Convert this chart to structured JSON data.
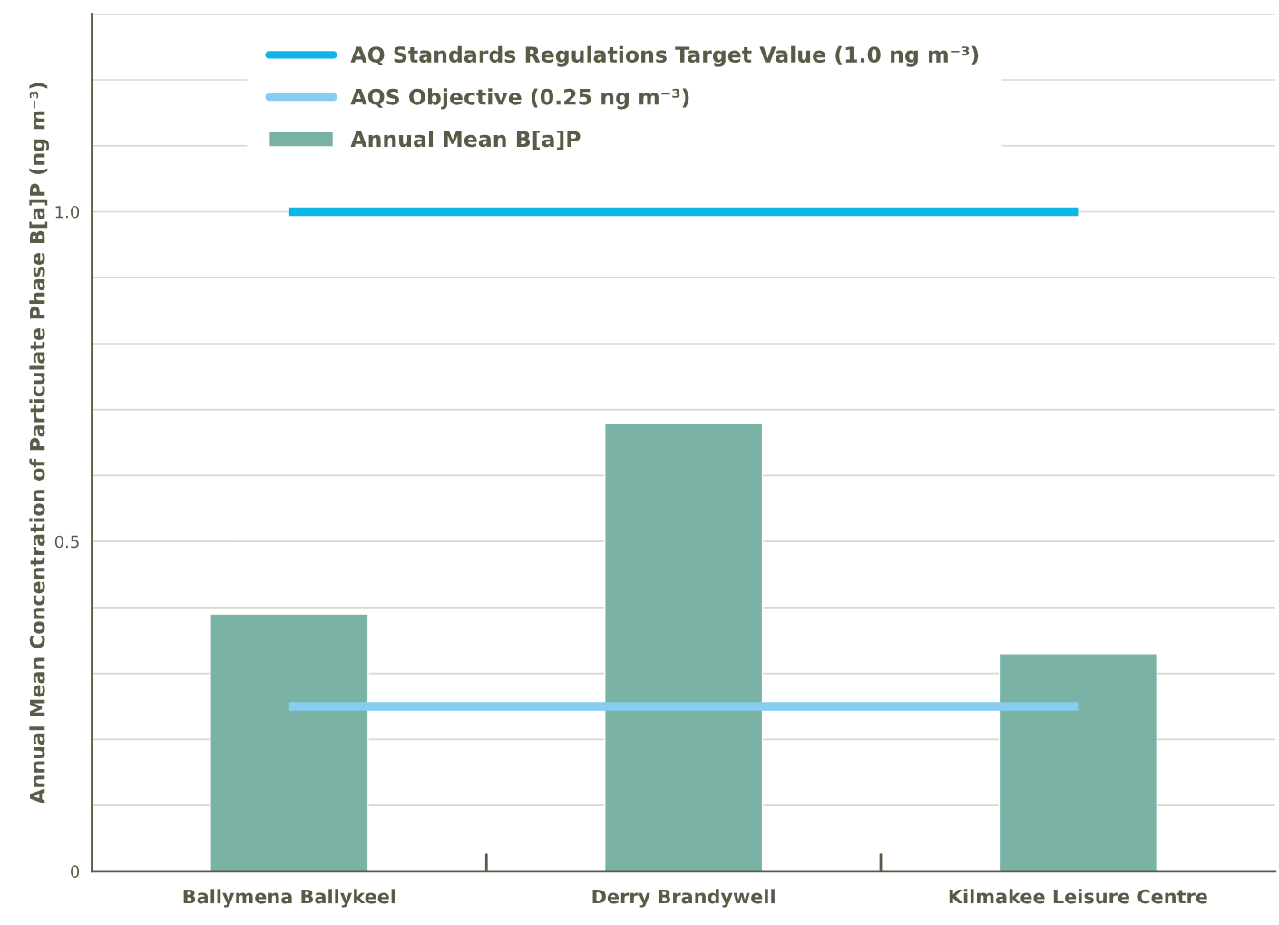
{
  "chart_data": {
    "type": "bar",
    "ylabel": "Annual Mean Concentration of Particulate Phase B[a]P (ng m⁻³)",
    "categories": [
      "Ballymena Ballykeel",
      "Derry Brandywell",
      "Kilmakee Leisure Centre"
    ],
    "series": [
      {
        "name": "AQ Standards Regulations Target Value (1.0 ng m⁻³)",
        "type": "line",
        "color": "#0bb5e6",
        "values": [
          1.0,
          1.0,
          1.0
        ]
      },
      {
        "name": "AQS Objective (0.25 ng m⁻³)",
        "type": "line",
        "color": "#86cdf0",
        "values": [
          0.25,
          0.25,
          0.25
        ]
      },
      {
        "name": "Annual Mean B[a]P",
        "color": "#7ab3a5",
        "values": [
          0.39,
          0.68,
          0.33
        ]
      }
    ],
    "ylim": [
      0,
      1.3
    ],
    "yticks": [
      0,
      {
        "value": 0.1,
        "label": null
      },
      {
        "value": 0.2,
        "label": null
      },
      {
        "value": 0.3,
        "label": null
      },
      {
        "value": 0.4,
        "label": null
      },
      {
        "value": 0.5,
        "label": "0.5"
      },
      {
        "value": 0.6,
        "label": null
      },
      {
        "value": 0.7,
        "label": null
      },
      {
        "value": 0.8,
        "label": null
      },
      {
        "value": 0.9,
        "label": null
      },
      {
        "value": 1.0,
        "label": "1.0"
      },
      {
        "value": 1.1,
        "label": null
      },
      {
        "value": 1.2,
        "label": null
      },
      {
        "value": 1.3,
        "label": null
      }
    ],
    "grid": "y",
    "legend": "top"
  }
}
